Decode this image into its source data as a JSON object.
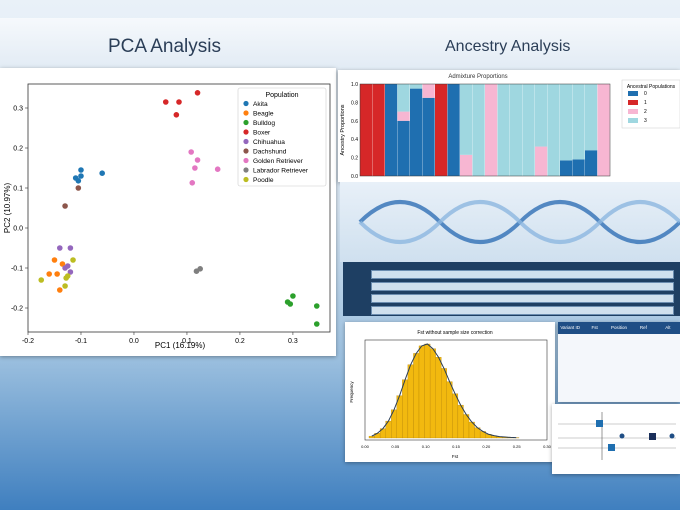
{
  "titles": {
    "pca": "PCA Analysis",
    "ancestry": "Ancestry Analysis"
  },
  "pca": {
    "xlabel": "PC1 (16.19%)",
    "ylabel": "PC2 (10.97%)",
    "legend_title": "Population",
    "xticks": [
      "-0.2",
      "-0.1",
      "0.0",
      "0.1",
      "0.2",
      "0.3"
    ],
    "yticks": [
      "0.3",
      "0.2",
      "0.1",
      "0.0",
      "-0.1",
      "-0.2"
    ]
  },
  "admixture": {
    "title": "Admixture Proportions",
    "ylabel": "Ancestry Proportions",
    "legend_title": "Ancestral Populations",
    "yticks": [
      "1.0",
      "0.8",
      "0.6",
      "0.4",
      "0.2",
      "0.0"
    ]
  },
  "histogram": {
    "title": "Fst without sample size correction",
    "ylabel": "Frequency",
    "xlabel": "Fst",
    "xticks": [
      "0.00",
      "0.05",
      "0.10",
      "0.15",
      "0.20",
      "0.25",
      "0.30"
    ]
  },
  "table": {
    "headers": [
      "Variant ID",
      "Fst",
      "Position",
      "Ref",
      "Alt"
    ]
  },
  "chart_data": [
    {
      "type": "scatter",
      "title": "",
      "xlabel": "PC1 (16.19%)",
      "ylabel": "PC2 (10.97%)",
      "xlim": [
        -0.2,
        0.37
      ],
      "ylim": [
        -0.26,
        0.36
      ],
      "legend": "top-right",
      "series": [
        {
          "name": "Akita",
          "color": "#1f77b4",
          "points": [
            [
              -0.06,
              0.137
            ],
            [
              -0.1,
              0.145
            ],
            [
              -0.11,
              0.125
            ],
            [
              -0.105,
              0.118
            ],
            [
              -0.1,
              0.13
            ]
          ]
        },
        {
          "name": "Beagle",
          "color": "#ff7f0e",
          "points": [
            [
              -0.15,
              -0.08
            ],
            [
              -0.145,
              -0.115
            ],
            [
              -0.16,
              -0.115
            ],
            [
              -0.14,
              -0.155
            ],
            [
              -0.135,
              -0.09
            ]
          ]
        },
        {
          "name": "Bulldog",
          "color": "#2ca02c",
          "points": [
            [
              0.29,
              -0.185
            ],
            [
              0.3,
              -0.17
            ],
            [
              0.295,
              -0.19
            ],
            [
              0.345,
              -0.195
            ],
            [
              0.345,
              -0.24
            ]
          ]
        },
        {
          "name": "Boxer",
          "color": "#d62728",
          "points": [
            [
              0.06,
              0.315
            ],
            [
              0.085,
              0.315
            ],
            [
              0.08,
              0.283
            ],
            [
              0.12,
              0.338
            ]
          ]
        },
        {
          "name": "Chihuahua",
          "color": "#9467bd",
          "points": [
            [
              -0.14,
              -0.05
            ],
            [
              -0.12,
              -0.05
            ],
            [
              -0.13,
              -0.1
            ],
            [
              -0.125,
              -0.095
            ],
            [
              -0.12,
              -0.11
            ]
          ]
        },
        {
          "name": "Dachshund",
          "color": "#8c564b",
          "points": [
            [
              -0.13,
              0.055
            ],
            [
              -0.105,
              0.1
            ]
          ]
        },
        {
          "name": "Golden Retriever",
          "color": "#e377c2",
          "points": [
            [
              0.108,
              0.19
            ],
            [
              0.12,
              0.17
            ],
            [
              0.115,
              0.15
            ],
            [
              0.158,
              0.147
            ],
            [
              0.11,
              0.113
            ]
          ]
        },
        {
          "name": "Labrador Retriever",
          "color": "#7f7f7f",
          "points": [
            [
              0.118,
              -0.108
            ],
            [
              0.125,
              -0.102
            ]
          ]
        },
        {
          "name": "Poodle",
          "color": "#bcbd22",
          "points": [
            [
              -0.175,
              -0.13
            ],
            [
              -0.13,
              -0.145
            ],
            [
              -0.128,
              -0.125
            ],
            [
              -0.125,
              -0.12
            ],
            [
              -0.115,
              -0.08
            ]
          ]
        }
      ]
    },
    {
      "type": "bar",
      "title": "Admixture Proportions",
      "xlabel": "",
      "ylabel": "Ancestry Proportions",
      "ylim": [
        0,
        1.0
      ],
      "stacked": true,
      "legend": "right",
      "series": [
        {
          "name": "0",
          "color": "#1f6fb0",
          "values": [
            0,
            0,
            1,
            0.6,
            0.95,
            0.85,
            0,
            1,
            0,
            0,
            0,
            0,
            0,
            0,
            0,
            0,
            0.17,
            0.18,
            0.28,
            0
          ]
        },
        {
          "name": "1",
          "color": "#d62728",
          "values": [
            1,
            1,
            0,
            0,
            0,
            0,
            1,
            0,
            0,
            0,
            0,
            0,
            0,
            0,
            0,
            0,
            0,
            0,
            0,
            0
          ]
        },
        {
          "name": "2",
          "color": "#f7b6d2",
          "values": [
            0,
            0,
            0,
            0.1,
            0,
            0.15,
            0,
            0,
            0.23,
            0,
            1,
            0,
            0,
            0,
            0.32,
            0,
            0,
            0,
            0,
            1
          ]
        },
        {
          "name": "3",
          "color": "#9fd7e0",
          "values": [
            0,
            0,
            0,
            0.3,
            0.05,
            0,
            0,
            0,
            0.77,
            1,
            0,
            1,
            1,
            1,
            0.68,
            1,
            0.83,
            0.82,
            0.72,
            0
          ]
        }
      ]
    },
    {
      "type": "bar",
      "title": "Fst without sample size correction",
      "xlabel": "Fst",
      "ylabel": "Frequency",
      "xlim": [
        0,
        0.3
      ],
      "note": "histogram with density line",
      "values": [
        0.02,
        0.05,
        0.1,
        0.18,
        0.3,
        0.45,
        0.62,
        0.78,
        0.9,
        0.98,
        1.0,
        0.95,
        0.86,
        0.74,
        0.6,
        0.47,
        0.35,
        0.25,
        0.17,
        0.11,
        0.07,
        0.04,
        0.025,
        0.015,
        0.01,
        0.006,
        0.004
      ]
    }
  ]
}
